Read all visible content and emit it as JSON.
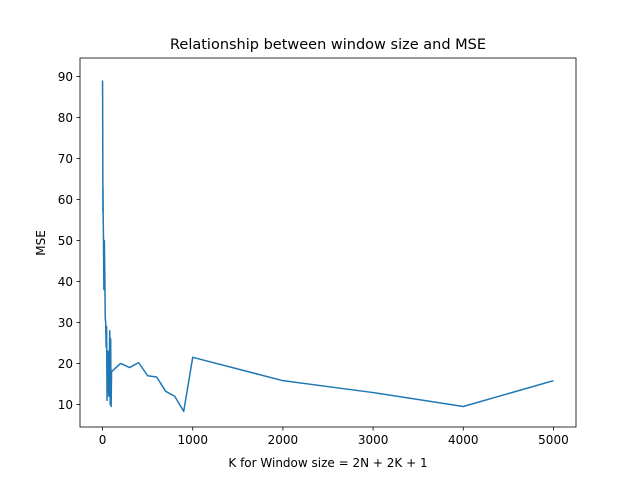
{
  "chart_data": {
    "type": "line",
    "title": "Relationship between window size and MSE",
    "xlabel": "K for Window size = 2N + 2K + 1",
    "ylabel": "MSE",
    "xlim": [
      -250,
      5250
    ],
    "ylim": [
      4.5,
      94.5
    ],
    "xticks": [
      0,
      1000,
      2000,
      3000,
      4000,
      5000
    ],
    "xtick_labels": [
      "0",
      "1000",
      "2000",
      "3000",
      "4000",
      "5000"
    ],
    "yticks": [
      10,
      20,
      30,
      40,
      50,
      60,
      70,
      80,
      90
    ],
    "ytick_labels": [
      "10",
      "20",
      "30",
      "40",
      "50",
      "60",
      "70",
      "80",
      "90"
    ],
    "grid": false,
    "line_color": "#1f77b4",
    "series": [
      {
        "x": [
          0,
          1,
          2,
          3,
          4,
          5,
          7,
          10,
          15,
          20,
          25,
          30,
          35,
          40,
          45,
          50,
          60,
          70,
          80,
          85,
          90,
          95,
          100,
          200,
          300,
          400,
          500,
          600,
          700,
          800,
          900,
          1000,
          2000,
          3000,
          4000,
          5000
        ],
        "y": [
          89,
          85,
          75,
          68,
          57,
          63,
          56,
          51,
          38,
          50,
          42,
          31,
          30,
          24,
          29,
          11,
          23,
          12,
          28,
          10,
          26,
          9.5,
          18,
          20,
          19,
          20.2,
          17,
          16.7,
          13.2,
          12,
          8.3,
          21.5,
          15.8,
          12.9,
          9.5,
          15.8
        ]
      }
    ]
  }
}
